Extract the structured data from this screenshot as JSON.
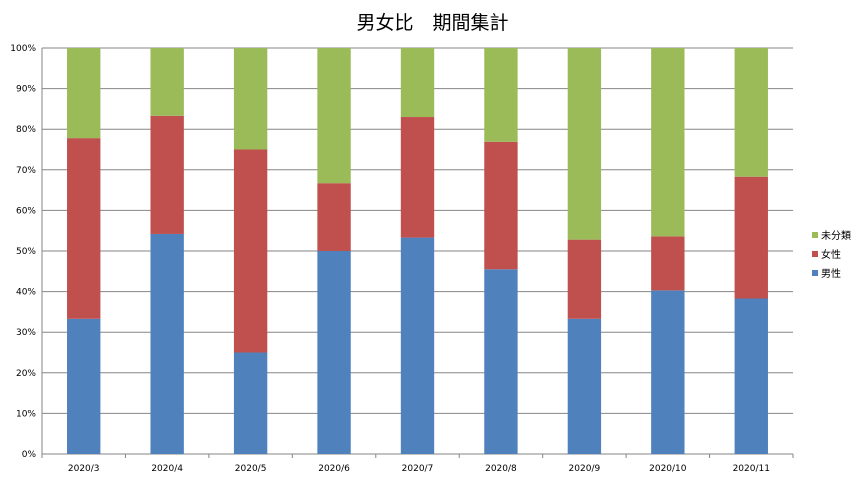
{
  "chart_data": {
    "type": "bar",
    "stacked": true,
    "percent": true,
    "title": "男女比　期間集計",
    "xlabel": "",
    "ylabel": "",
    "categories": [
      "2020/3",
      "2020/4",
      "2020/5",
      "2020/6",
      "2020/7",
      "2020/8",
      "2020/9",
      "2020/10",
      "2020/11"
    ],
    "series": [
      {
        "name": "男性",
        "color": "#4f81bd",
        "values": [
          33.3,
          54.2,
          25.0,
          50.0,
          53.3,
          45.5,
          33.3,
          40.3,
          38.3
        ]
      },
      {
        "name": "女性",
        "color": "#c0504d",
        "values": [
          44.5,
          29.1,
          50.0,
          16.7,
          29.7,
          31.4,
          19.5,
          13.3,
          30.0
        ]
      },
      {
        "name": "未分類",
        "color": "#9bbb59",
        "values": [
          22.2,
          16.7,
          25.0,
          33.3,
          17.0,
          23.1,
          47.2,
          46.4,
          31.7
        ]
      }
    ],
    "ylim": [
      0,
      100
    ],
    "y_ticks": [
      "0%",
      "10%",
      "20%",
      "30%",
      "40%",
      "50%",
      "60%",
      "70%",
      "80%",
      "90%",
      "100%"
    ],
    "grid": true,
    "legend_position": "right"
  }
}
